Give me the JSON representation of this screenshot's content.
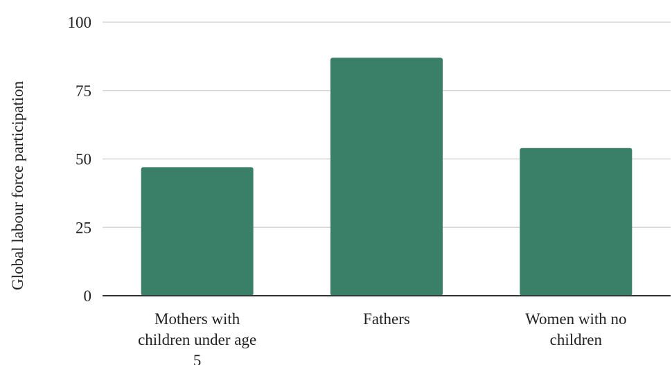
{
  "chart_data": {
    "type": "bar",
    "categories": [
      [
        "Mothers with",
        "children under age",
        "5"
      ],
      [
        "Fathers"
      ],
      [
        "Women with no",
        "children"
      ]
    ],
    "values": [
      47,
      87,
      54
    ],
    "ylabel": "Global labour force participation",
    "xlabel": "",
    "ylim": [
      0,
      100
    ],
    "yticks": [
      0,
      25,
      50,
      75,
      100
    ],
    "grid": true,
    "bar_color": "#3a8068"
  }
}
